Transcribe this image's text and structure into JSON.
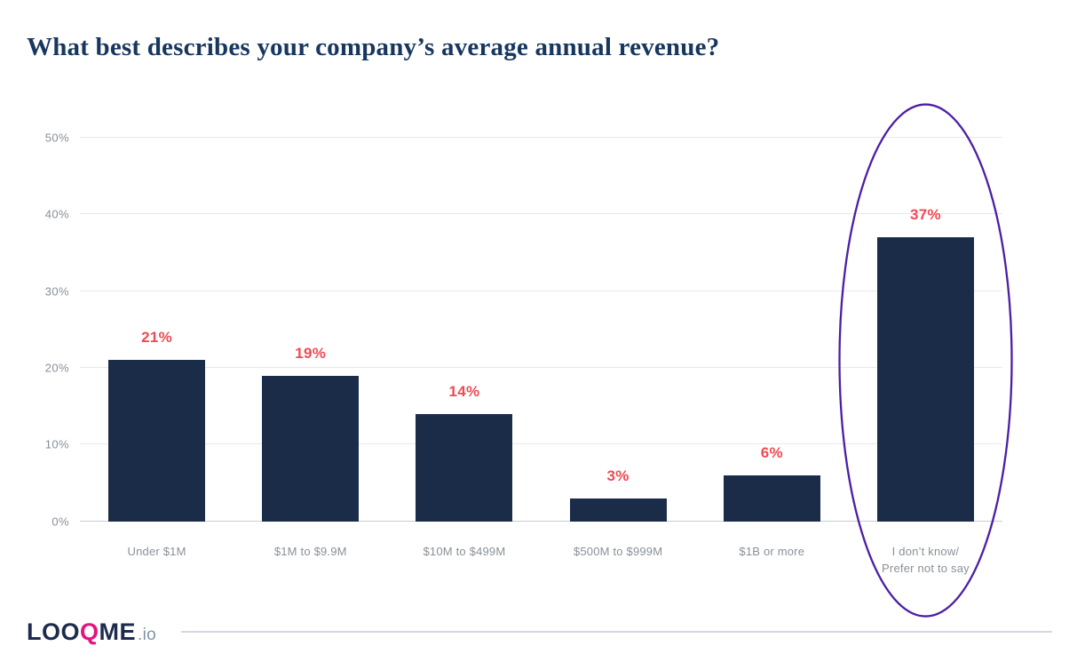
{
  "chart_data": {
    "type": "bar",
    "title": "What best describes your company’s average annual revenue?",
    "categories": [
      "Under $1M",
      "$1M to $9.9M",
      "$10M to $499M",
      "$500M to $999M",
      "$1B or more",
      "I don’t know/\nPrefer not to say"
    ],
    "values": [
      21,
      19,
      14,
      3,
      6,
      37
    ],
    "value_labels": [
      "21%",
      "19%",
      "14%",
      "3%",
      "6%",
      "37%"
    ],
    "ylim": [
      0,
      50
    ],
    "yticks": [
      0,
      10,
      20,
      30,
      40,
      50
    ],
    "ytick_labels": [
      "0%",
      "10%",
      "20%",
      "30%",
      "40%",
      "50%"
    ],
    "grid": true,
    "legend": false,
    "colors": {
      "bar": "#1b2c48",
      "value_label": "#f04a53",
      "axis_label": "#8a9097",
      "gridline": "#e9e9ea",
      "baseline": "#c9cdd2",
      "title": "#17375f"
    },
    "annotation": {
      "shape": "ellipse",
      "highlighted_category": "I don’t know/\nPrefer not to say",
      "color": "#4b1fa6"
    }
  },
  "footer": {
    "logo": {
      "part1": "LOO",
      "q": "Q",
      "part2": "ME",
      "suffix": ".io"
    },
    "logo_colors": {
      "text": "#1d2b4d",
      "q": "#e31380",
      "suffix": "#7f93a2"
    }
  }
}
